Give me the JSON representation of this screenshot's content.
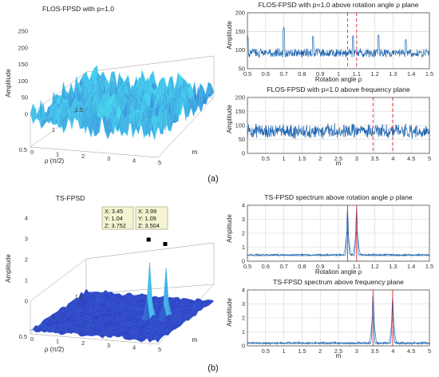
{
  "panel_labels": [
    "(a)",
    "(b)"
  ],
  "chart_data": [
    {
      "id": "a3d",
      "type": "surface",
      "title": "FLOS-FPSD with p=1.0",
      "zlabel": "Amplitude",
      "xlabel": "m",
      "ylabel": "ρ (π/2)",
      "x_ticks": [
        "0",
        "1",
        "2",
        "3",
        "4",
        "5"
      ],
      "y_ticks": [
        "0.5",
        "1",
        "1.5"
      ],
      "z_ticks": [
        "0",
        "50",
        "100",
        "150",
        "200",
        "250"
      ],
      "zlim": [
        0,
        250
      ],
      "baseline": 85,
      "noise": 55,
      "peaks": []
    },
    {
      "id": "a_rho",
      "type": "line",
      "title": "FLOS-FPSD with p=1.0 above rotation angle ρ plane",
      "xlabel": "Rotation angle ρ",
      "ylabel": "Amplitude",
      "xlim": [
        0.5,
        1.5
      ],
      "ylim": [
        50,
        200
      ],
      "x_ticks": [
        "0.5",
        "0.6",
        "0.7",
        "0.8",
        "0.9",
        "1",
        "1.1",
        "1.2",
        "1.3",
        "1.4",
        "1.5"
      ],
      "y_ticks": [
        "50",
        "100",
        "150",
        "200"
      ],
      "markers": [
        1.05,
        1.1
      ],
      "marker_style": "dashed",
      "baseline": 92,
      "noise": 14,
      "spikes": [
        [
          0.5,
          140
        ],
        [
          0.7,
          162
        ],
        [
          0.86,
          138
        ],
        [
          1.08,
          140
        ],
        [
          1.22,
          142
        ],
        [
          1.37,
          130
        ]
      ],
      "peaks": []
    },
    {
      "id": "a_freq",
      "type": "line",
      "title": "FLOS-FPSD with p=1.0 above frequency plane",
      "xlabel": "m",
      "ylabel": "Amplitude",
      "xlim": [
        0,
        5
      ],
      "ylim": [
        0,
        200
      ],
      "x_ticks": [
        "0.5",
        "1",
        "1.5",
        "2",
        "2.5",
        "3",
        "3.5",
        "4",
        "4.5",
        "5"
      ],
      "y_ticks": [
        "0",
        "50",
        "100",
        "150",
        "200"
      ],
      "markers": [
        3.45,
        3.99
      ],
      "marker_style": "dashed",
      "baseline": 80,
      "noise": 30,
      "spikes": [],
      "peaks": []
    },
    {
      "id": "b3d",
      "type": "surface",
      "title": "TS-FPSD",
      "zlabel": "Amplitude",
      "xlabel": "m",
      "ylabel": "ρ (π/2)",
      "x_ticks": [
        "0",
        "1",
        "2",
        "3",
        "4",
        "5"
      ],
      "y_ticks": [
        "0.5",
        "1",
        "1.5"
      ],
      "z_ticks": [
        "0",
        "1",
        "2",
        "3",
        "4"
      ],
      "zlim": [
        0,
        4
      ],
      "baseline": 0.15,
      "noise": 0.12,
      "peaks": [
        {
          "x": 3.45,
          "y": 1.04,
          "z": 3.752
        },
        {
          "x": 3.99,
          "y": 1.09,
          "z": 3.504
        }
      ],
      "tooltips": [
        {
          "x": "X: 3.45",
          "y": "Y: 1.04",
          "z": "Z: 3.752"
        },
        {
          "x": "X: 3.99",
          "y": "Y: 1.09",
          "z": "Z: 3.504"
        }
      ]
    },
    {
      "id": "b_rho",
      "type": "line",
      "title": "TS-FPSD spectrum above rotation angle ρ plane",
      "xlabel": "Rotation angle ρ",
      "ylabel": "Amplitude",
      "xlim": [
        0.5,
        1.5
      ],
      "ylim": [
        0,
        4
      ],
      "x_ticks": [
        "0.5",
        "0.6",
        "0.7",
        "0.8",
        "0.9",
        "1",
        "1.1",
        "1.2",
        "1.3",
        "1.4",
        "1.5"
      ],
      "y_ticks": [
        "0",
        "1",
        "2",
        "3",
        "4"
      ],
      "markers": [
        1.05,
        1.1
      ],
      "marker_style": "solid",
      "baseline": 0.45,
      "noise": 0.08,
      "spikes": [],
      "peaks": [
        [
          1.05,
          3.75
        ],
        [
          1.1,
          3.7
        ]
      ]
    },
    {
      "id": "b_freq",
      "type": "line",
      "title": "TS-FPSD spectrum above frequency plane",
      "xlabel": "m",
      "ylabel": "Amplitude",
      "xlim": [
        0,
        5
      ],
      "ylim": [
        0,
        4
      ],
      "x_ticks": [
        "0.5",
        "1",
        "1.5",
        "2",
        "2.5",
        "3",
        "3.5",
        "4",
        "4.5",
        "5"
      ],
      "y_ticks": [
        "0",
        "1",
        "2",
        "3",
        "4"
      ],
      "markers": [
        3.45,
        3.99
      ],
      "marker_style": "solid",
      "baseline": 0.2,
      "noise": 0.1,
      "spikes": [],
      "peaks": [
        [
          3.45,
          3.7
        ],
        [
          3.99,
          3.5
        ]
      ]
    }
  ],
  "colors": {
    "series": "#1f66b0",
    "marker": "#e0262b",
    "surface_low": "#2a2fc0",
    "surface_high": "#4ad8f0"
  }
}
